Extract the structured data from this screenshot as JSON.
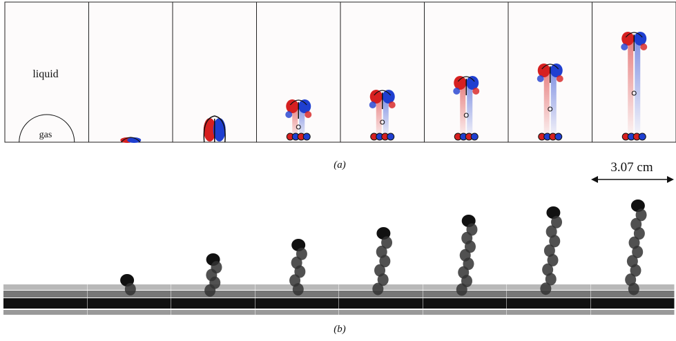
{
  "panel_a": {
    "label": "(a)",
    "liquid": "liquid",
    "gas": "gas"
  },
  "panel_b": {
    "label": "(b)",
    "scale_bar": "3.07 cm"
  }
}
